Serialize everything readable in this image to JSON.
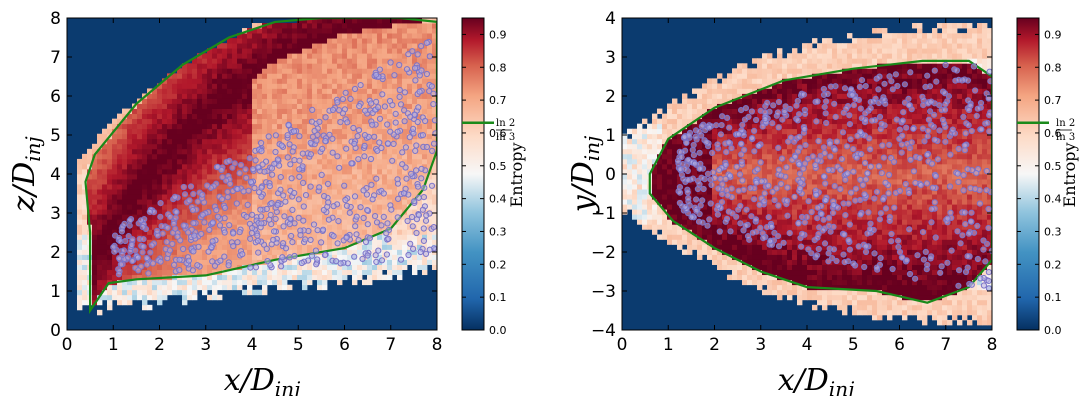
{
  "chart_data": [
    {
      "type": "heatmap",
      "title": "",
      "xlabel": "x/D_inj",
      "ylabel": "z/D_inj",
      "xlabel_tex": [
        "x/D",
        "inj"
      ],
      "ylabel_tex": [
        "z/D",
        "inj"
      ],
      "xlim": [
        0,
        8
      ],
      "ylim": [
        0,
        8
      ],
      "xticks": [
        "0",
        "1",
        "2",
        "3",
        "4",
        "5",
        "6",
        "7",
        "8"
      ],
      "yticks": [
        "0",
        "1",
        "2",
        "3",
        "4",
        "5",
        "6",
        "7",
        "8"
      ],
      "colorbar": {
        "label": "Entropy",
        "range": [
          0.0,
          0.95
        ],
        "ticks": [
          "0.0",
          "0.1",
          "0.2",
          "0.3",
          "0.4",
          "0.5",
          "0.6",
          "0.7",
          "0.8",
          "0.9"
        ],
        "contour_level": 0.631,
        "contour_label_num": "ln 2",
        "contour_label_den": "ln 3",
        "colormap": "RdBu_r"
      },
      "contour_color": "#1a8a1a",
      "marker_color": "#7b74c9",
      "background_color": "#0b3b6f",
      "ridge": [
        [
          0.6,
          1.8
        ],
        [
          1.5,
          3.6
        ],
        [
          3.0,
          5.6
        ],
        [
          4.5,
          6.9
        ],
        [
          6.0,
          7.6
        ],
        [
          8.0,
          8.0
        ]
      ],
      "contour_boundary": [
        [
          0.5,
          0.5
        ],
        [
          0.9,
          1.2
        ],
        [
          1.5,
          1.3
        ],
        [
          3.0,
          1.4
        ],
        [
          4.5,
          1.8
        ],
        [
          6.0,
          2.1
        ],
        [
          7.0,
          2.6
        ],
        [
          7.7,
          3.6
        ],
        [
          8.0,
          4.6
        ],
        [
          8.0,
          7.9
        ],
        [
          7.2,
          8.0
        ],
        [
          5.5,
          8.0
        ],
        [
          4.5,
          7.9
        ],
        [
          3.5,
          7.5
        ],
        [
          2.5,
          6.8
        ],
        [
          1.5,
          5.8
        ],
        [
          0.6,
          4.5
        ],
        [
          0.4,
          3.8
        ],
        [
          0.5,
          2.5
        ],
        [
          0.5,
          0.5
        ]
      ],
      "plume_lower": [
        [
          0.3,
          0.4
        ],
        [
          2.0,
          0.6
        ],
        [
          4.0,
          0.9
        ],
        [
          6.0,
          1.1
        ],
        [
          8.0,
          1.5
        ]
      ],
      "plume_upper": [
        [
          0.0,
          4.0
        ],
        [
          1.0,
          5.4
        ],
        [
          2.5,
          6.8
        ],
        [
          4.0,
          7.8
        ],
        [
          5.5,
          8.0
        ],
        [
          8.0,
          8.0
        ]
      ],
      "droplet_region": {
        "x": [
          1.0,
          8.0
        ],
        "y_low": [
          1.4,
          1.8
        ],
        "y_high": [
          2.6,
          7.6
        ],
        "count": 700
      }
    },
    {
      "type": "heatmap",
      "title": "",
      "xlabel": "x/D_inj",
      "ylabel": "y/D_inj",
      "xlabel_tex": [
        "x/D",
        "inj"
      ],
      "ylabel_tex": [
        "y/D",
        "inj"
      ],
      "xlim": [
        0,
        8
      ],
      "ylim": [
        -4,
        4
      ],
      "xticks": [
        "0",
        "1",
        "2",
        "3",
        "4",
        "5",
        "6",
        "7",
        "8"
      ],
      "yticks": [
        "−4",
        "−3",
        "−2",
        "−1",
        "0",
        "1",
        "2",
        "3",
        "4"
      ],
      "colorbar": {
        "label": "Entropy",
        "range": [
          0.0,
          0.95
        ],
        "ticks": [
          "0.0",
          "0.1",
          "0.2",
          "0.3",
          "0.4",
          "0.5",
          "0.6",
          "0.7",
          "0.8",
          "0.9"
        ],
        "contour_level": 0.631,
        "contour_label_num": "ln 2",
        "contour_label_den": "ln 3",
        "colormap": "RdBu_r"
      },
      "contour_color": "#1a8a1a",
      "marker_color": "#7b74c9",
      "background_color": "#0b3b6f",
      "contour_boundary": [
        [
          0.6,
          0.0
        ],
        [
          1.0,
          0.9
        ],
        [
          2.0,
          1.7
        ],
        [
          3.5,
          2.4
        ],
        [
          5.0,
          2.7
        ],
        [
          6.5,
          2.9
        ],
        [
          7.5,
          2.9
        ],
        [
          8.0,
          2.5
        ],
        [
          8.0,
          -2.2
        ],
        [
          7.5,
          -2.9
        ],
        [
          6.6,
          -3.3
        ],
        [
          5.5,
          -3.0
        ],
        [
          4.0,
          -2.9
        ],
        [
          3.0,
          -2.5
        ],
        [
          2.0,
          -1.9
        ],
        [
          1.1,
          -1.2
        ],
        [
          0.6,
          -0.5
        ],
        [
          0.6,
          0.0
        ]
      ],
      "plume_halfwidth": [
        [
          0.0,
          1.0
        ],
        [
          1.0,
          1.8
        ],
        [
          2.5,
          2.8
        ],
        [
          4.0,
          3.4
        ],
        [
          6.0,
          3.8
        ],
        [
          8.0,
          3.9
        ]
      ],
      "droplet_region": {
        "x": [
          1.2,
          8.0
        ],
        "halfwidth": [
          0.6,
          3.0
        ],
        "count": 750
      }
    }
  ]
}
